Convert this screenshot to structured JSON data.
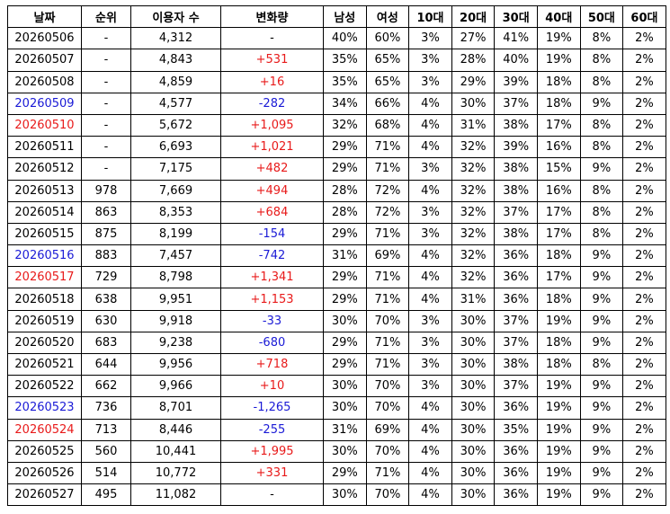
{
  "table": {
    "header": [
      "날짜",
      "순위",
      "이용자 수",
      "변화량",
      "남성",
      "여성",
      "10대",
      "20대",
      "30대",
      "40대",
      "50대",
      "60대"
    ],
    "rows": [
      [
        "20260506",
        "-",
        "4,312",
        "-",
        "40%",
        "60%",
        "3%",
        "27%",
        "41%",
        "19%",
        "8%",
        "2%"
      ],
      [
        "20260507",
        "-",
        "4,843",
        "+531",
        "35%",
        "65%",
        "3%",
        "28%",
        "40%",
        "19%",
        "8%",
        "2%"
      ],
      [
        "20260508",
        "-",
        "4,859",
        "+16",
        "35%",
        "65%",
        "3%",
        "29%",
        "39%",
        "18%",
        "8%",
        "2%"
      ],
      [
        "20260509",
        "-",
        "4,577",
        "-282",
        "34%",
        "66%",
        "4%",
        "30%",
        "37%",
        "18%",
        "9%",
        "2%"
      ],
      [
        "20260510",
        "-",
        "5,672",
        "+1,095",
        "32%",
        "68%",
        "4%",
        "31%",
        "38%",
        "17%",
        "8%",
        "2%"
      ],
      [
        "20260511",
        "-",
        "6,693",
        "+1,021",
        "29%",
        "71%",
        "4%",
        "32%",
        "39%",
        "16%",
        "8%",
        "2%"
      ],
      [
        "20260512",
        "-",
        "7,175",
        "+482",
        "29%",
        "71%",
        "3%",
        "32%",
        "38%",
        "15%",
        "9%",
        "2%"
      ],
      [
        "20260513",
        "978",
        "7,669",
        "+494",
        "28%",
        "72%",
        "4%",
        "32%",
        "38%",
        "16%",
        "8%",
        "2%"
      ],
      [
        "20260514",
        "863",
        "8,353",
        "+684",
        "28%",
        "72%",
        "3%",
        "32%",
        "37%",
        "17%",
        "8%",
        "2%"
      ],
      [
        "20260515",
        "875",
        "8,199",
        "-154",
        "29%",
        "71%",
        "3%",
        "32%",
        "38%",
        "17%",
        "8%",
        "2%"
      ],
      [
        "20260516",
        "883",
        "7,457",
        "-742",
        "31%",
        "69%",
        "4%",
        "32%",
        "36%",
        "18%",
        "9%",
        "2%"
      ],
      [
        "20260517",
        "729",
        "8,798",
        "+1,341",
        "29%",
        "71%",
        "4%",
        "32%",
        "36%",
        "17%",
        "9%",
        "2%"
      ],
      [
        "20260518",
        "638",
        "9,951",
        "+1,153",
        "29%",
        "71%",
        "4%",
        "31%",
        "36%",
        "18%",
        "9%",
        "2%"
      ],
      [
        "20260519",
        "630",
        "9,918",
        "-33",
        "30%",
        "70%",
        "3%",
        "30%",
        "37%",
        "19%",
        "9%",
        "2%"
      ],
      [
        "20260520",
        "683",
        "9,238",
        "-680",
        "29%",
        "71%",
        "3%",
        "30%",
        "37%",
        "18%",
        "9%",
        "2%"
      ],
      [
        "20260521",
        "644",
        "9,956",
        "+718",
        "29%",
        "71%",
        "3%",
        "30%",
        "38%",
        "18%",
        "8%",
        "2%"
      ],
      [
        "20260522",
        "662",
        "9,966",
        "+10",
        "30%",
        "70%",
        "3%",
        "30%",
        "37%",
        "19%",
        "9%",
        "2%"
      ],
      [
        "20260523",
        "736",
        "8,701",
        "-1,265",
        "30%",
        "70%",
        "4%",
        "30%",
        "36%",
        "19%",
        "9%",
        "2%"
      ],
      [
        "20260524",
        "713",
        "8,446",
        "-255",
        "31%",
        "69%",
        "4%",
        "30%",
        "35%",
        "19%",
        "9%",
        "2%"
      ],
      [
        "20260525",
        "560",
        "10,441",
        "+1,995",
        "30%",
        "70%",
        "4%",
        "30%",
        "36%",
        "19%",
        "9%",
        "2%"
      ],
      [
        "20260526",
        "514",
        "10,772",
        "+331",
        "29%",
        "71%",
        "4%",
        "30%",
        "36%",
        "19%",
        "9%",
        "2%"
      ],
      [
        "20260527",
        "495",
        "11,082",
        "-",
        "30%",
        "70%",
        "4%",
        "30%",
        "36%",
        "19%",
        "9%",
        "2%"
      ]
    ],
    "date_colors": [
      "#000000",
      "#000000",
      "#000000",
      "#1a1ad6",
      "#e81a1a",
      "#000000",
      "#000000",
      "#000000",
      "#000000",
      "#000000",
      "#1a1ad6",
      "#e81a1a",
      "#000000",
      "#000000",
      "#000000",
      "#000000",
      "#000000",
      "#1a1ad6",
      "#e81a1a",
      "#000000",
      "#000000",
      "#000000"
    ],
    "positive_color": "#e81a1a",
    "negative_color": "#1a1ad6"
  }
}
